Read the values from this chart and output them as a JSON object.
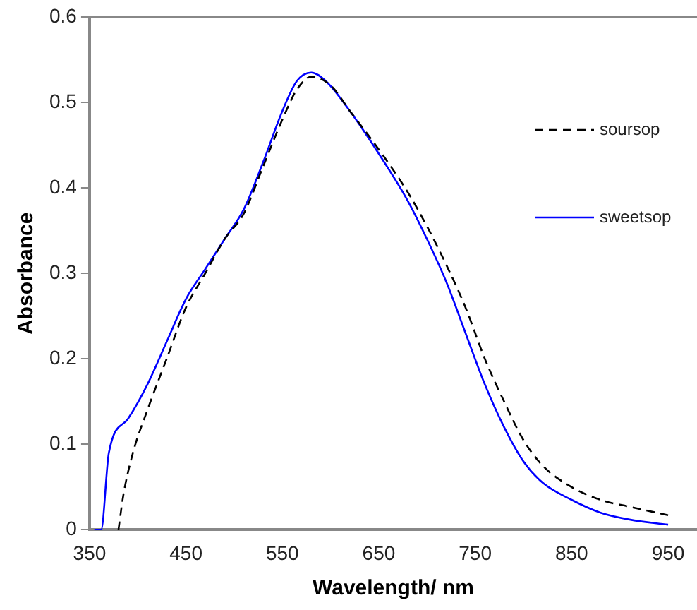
{
  "chart_data": {
    "type": "line",
    "xlabel": "Wavelength/ nm",
    "ylabel": "Absorbance",
    "xlim": [
      350,
      980
    ],
    "xticks": [
      350,
      450,
      550,
      650,
      750,
      850,
      950
    ],
    "ylim": [
      0,
      0.6
    ],
    "yticks": [
      0,
      0.1,
      0.2,
      0.3,
      0.4,
      0.5,
      0.6
    ],
    "grid": false,
    "legend": "right",
    "marker": "none",
    "series": [
      {
        "name": "soursop",
        "color": "#000000",
        "line_style": "dashed",
        "x": [
          380,
          385,
          395,
          410,
          430,
          450,
          470,
          490,
          510,
          530,
          550,
          565,
          580,
          600,
          620,
          650,
          680,
          700,
          720,
          740,
          760,
          780,
          800,
          820,
          850,
          880,
          910,
          950
        ],
        "values": [
          0,
          0.04,
          0.09,
          0.14,
          0.2,
          0.26,
          0.3,
          0.34,
          0.37,
          0.425,
          0.48,
          0.515,
          0.53,
          0.52,
          0.49,
          0.445,
          0.395,
          0.355,
          0.31,
          0.26,
          0.2,
          0.15,
          0.105,
          0.075,
          0.05,
          0.035,
          0.027,
          0.017
        ]
      },
      {
        "name": "sweetsop",
        "color": "#0000ff",
        "line_style": "solid",
        "x": [
          355,
          362,
          370,
          390,
          410,
          430,
          450,
          470,
          490,
          510,
          530,
          550,
          565,
          580,
          595,
          620,
          650,
          680,
          700,
          720,
          740,
          760,
          780,
          800,
          820,
          850,
          880,
          910,
          950
        ],
        "values": [
          0,
          0,
          0.09,
          0.13,
          0.17,
          0.22,
          0.27,
          0.305,
          0.34,
          0.375,
          0.43,
          0.49,
          0.525,
          0.535,
          0.525,
          0.49,
          0.44,
          0.385,
          0.34,
          0.29,
          0.23,
          0.17,
          0.12,
          0.08,
          0.055,
          0.035,
          0.02,
          0.012,
          0.006
        ]
      }
    ]
  }
}
